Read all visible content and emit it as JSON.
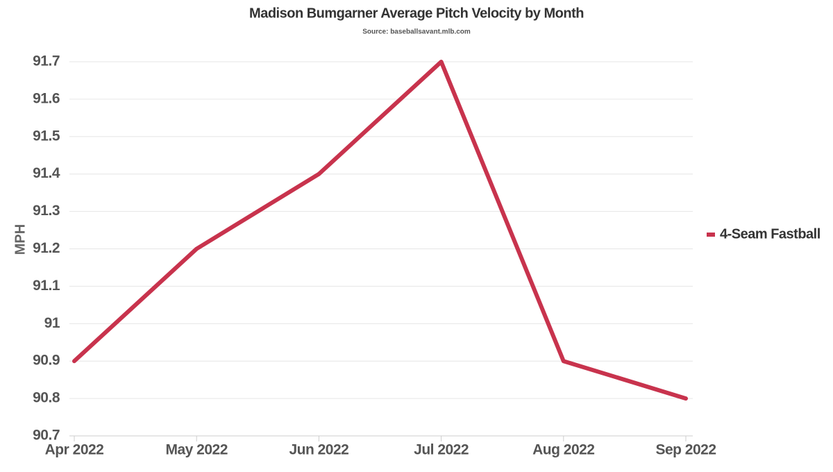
{
  "chart_data": {
    "type": "line",
    "title": "Madison Bumgarner Average Pitch Velocity by Month",
    "subtitle": "Source: baseballsavant.mlb.com",
    "y_label": "MPH",
    "categories": [
      "Apr 2022",
      "May 2022",
      "Jun 2022",
      "Jul 2022",
      "Aug 2022",
      "Sep 2022"
    ],
    "series": [
      {
        "name": "4-Seam Fastball",
        "color": "#c8334d",
        "values": [
          90.9,
          91.2,
          91.4,
          91.7,
          90.9,
          90.8
        ]
      }
    ],
    "ylim": [
      90.7,
      91.7
    ],
    "yticks": [
      90.7,
      90.8,
      90.9,
      91,
      91.1,
      91.2,
      91.3,
      91.4,
      91.5,
      91.6,
      91.7
    ],
    "grid": true,
    "legend": "right"
  }
}
